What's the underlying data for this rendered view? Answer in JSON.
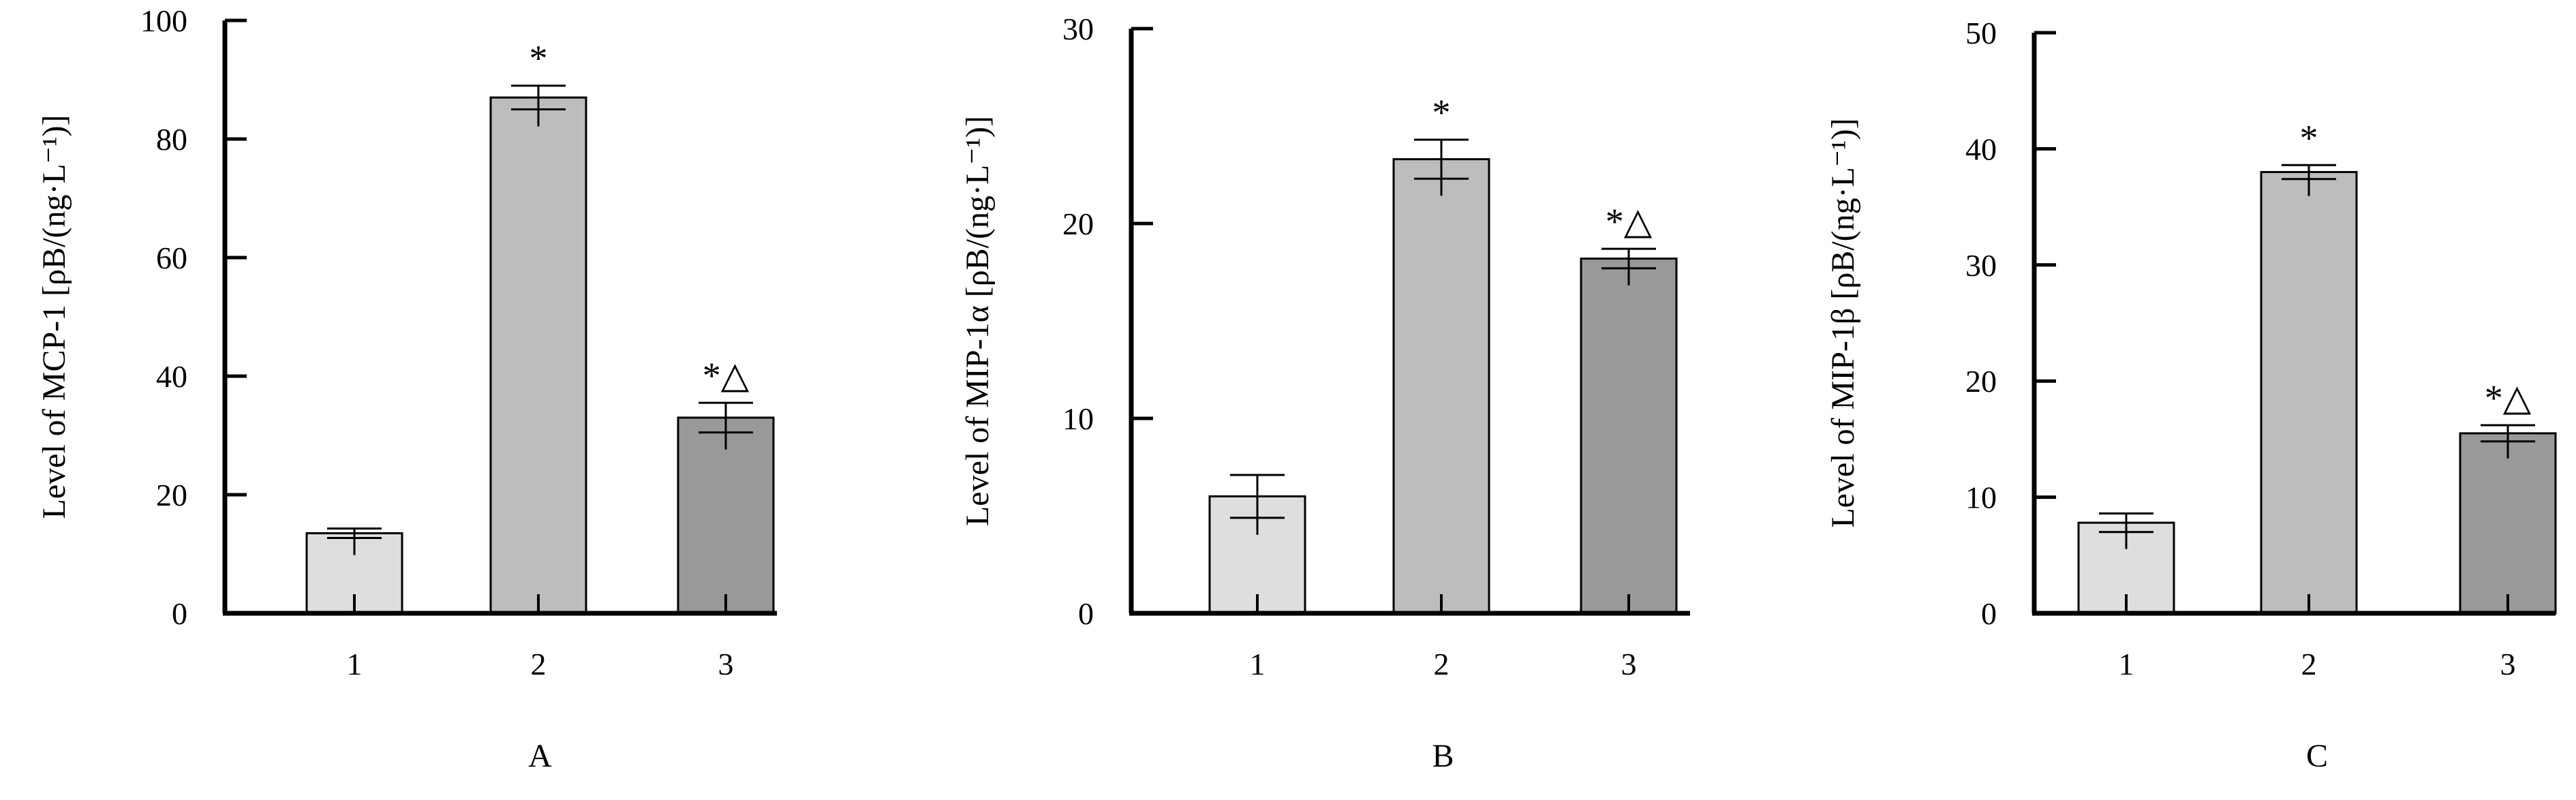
{
  "chart_data": [
    {
      "type": "bar",
      "panel_label": "A",
      "ylabel": "Level of MCP-1 [ρB/(ng·L⁻¹)]",
      "categories": [
        "1",
        "2",
        "3"
      ],
      "values": [
        13.5,
        87,
        33
      ],
      "errors": [
        0.8,
        2,
        2.5
      ],
      "significance": [
        "",
        "*",
        "*△"
      ],
      "ylim": [
        0,
        100
      ],
      "yticks": [
        0,
        20,
        40,
        60,
        80,
        100
      ],
      "bar_colors": [
        "#dedede",
        "#bdbdbd",
        "#999999"
      ]
    },
    {
      "type": "bar",
      "panel_label": "B",
      "ylabel": "Level of MIP-1α [ρB/(ng·L⁻¹)]",
      "categories": [
        "1",
        "2",
        "3"
      ],
      "values": [
        6,
        23.3,
        18.2
      ],
      "errors": [
        1.1,
        1,
        0.5
      ],
      "significance": [
        "",
        "*",
        "*△"
      ],
      "ylim": [
        0,
        30
      ],
      "yticks": [
        0,
        10,
        20,
        30
      ],
      "bar_colors": [
        "#dedede",
        "#bdbdbd",
        "#999999"
      ]
    },
    {
      "type": "bar",
      "panel_label": "C",
      "ylabel": "Level of MIP-1β [ρB/(ng·L⁻¹)]",
      "categories": [
        "1",
        "2",
        "3"
      ],
      "values": [
        7.8,
        38,
        15.5
      ],
      "errors": [
        0.8,
        0.6,
        0.7
      ],
      "significance": [
        "",
        "*",
        "*△"
      ],
      "ylim": [
        0,
        50
      ],
      "yticks": [
        0,
        10,
        20,
        30,
        40,
        50
      ],
      "bar_colors": [
        "#dedede",
        "#bdbdbd",
        "#999999"
      ]
    }
  ]
}
